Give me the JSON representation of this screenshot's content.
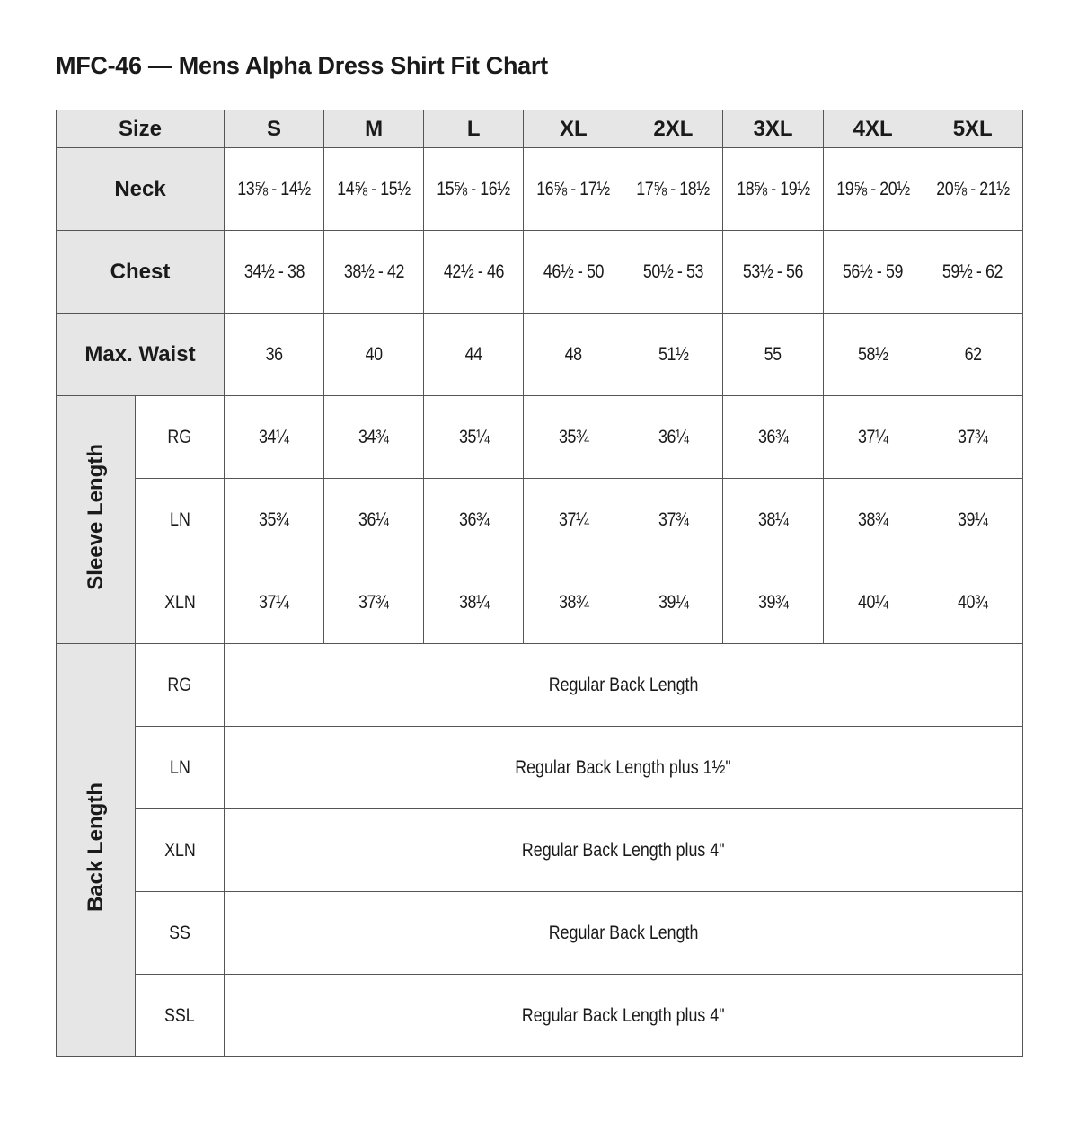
{
  "title": "MFC-46 — Mens Alpha Dress Shirt Fit Chart",
  "header": {
    "label": "Size",
    "sizes": [
      "S",
      "M",
      "L",
      "XL",
      "2XL",
      "3XL",
      "4XL",
      "5XL"
    ]
  },
  "rows": [
    {
      "label": "Neck",
      "values": [
        "13⅝ - 14½",
        "14⅝ - 15½",
        "15⅝ - 16½",
        "16⅝ - 17½",
        "17⅝ - 18½",
        "18⅝ - 19½",
        "19⅝ - 20½",
        "20⅝ - 21½"
      ]
    },
    {
      "label": "Chest",
      "values": [
        "34½ - 38",
        "38½ - 42",
        "42½ - 46",
        "46½ - 50",
        "50½ - 53",
        "53½ - 56",
        "56½ - 59",
        "59½ - 62"
      ]
    },
    {
      "label": "Max. Waist",
      "values": [
        "36",
        "40",
        "44",
        "48",
        "51½",
        "55",
        "58½",
        "62"
      ]
    }
  ],
  "sleeve": {
    "label": "Sleeve Length",
    "rows": [
      {
        "label": "RG",
        "values": [
          "34¼",
          "34¾",
          "35¼",
          "35¾",
          "36¼",
          "36¾",
          "37¼",
          "37¾"
        ]
      },
      {
        "label": "LN",
        "values": [
          "35¾",
          "36¼",
          "36¾",
          "37¼",
          "37¾",
          "38¼",
          "38¾",
          "39¼"
        ]
      },
      {
        "label": "XLN",
        "values": [
          "37¼",
          "37¾",
          "38¼",
          "38¾",
          "39¼",
          "39¾",
          "40¼",
          "40¾"
        ]
      }
    ]
  },
  "back": {
    "label": "Back Length",
    "rows": [
      {
        "label": "RG",
        "value": "Regular Back Length"
      },
      {
        "label": "LN",
        "value": "Regular Back Length plus 1½\""
      },
      {
        "label": "XLN",
        "value": "Regular Back Length plus 4\""
      },
      {
        "label": "SS",
        "value": "Regular Back Length"
      },
      {
        "label": "SSL",
        "value": "Regular Back Length plus 4\""
      }
    ]
  }
}
